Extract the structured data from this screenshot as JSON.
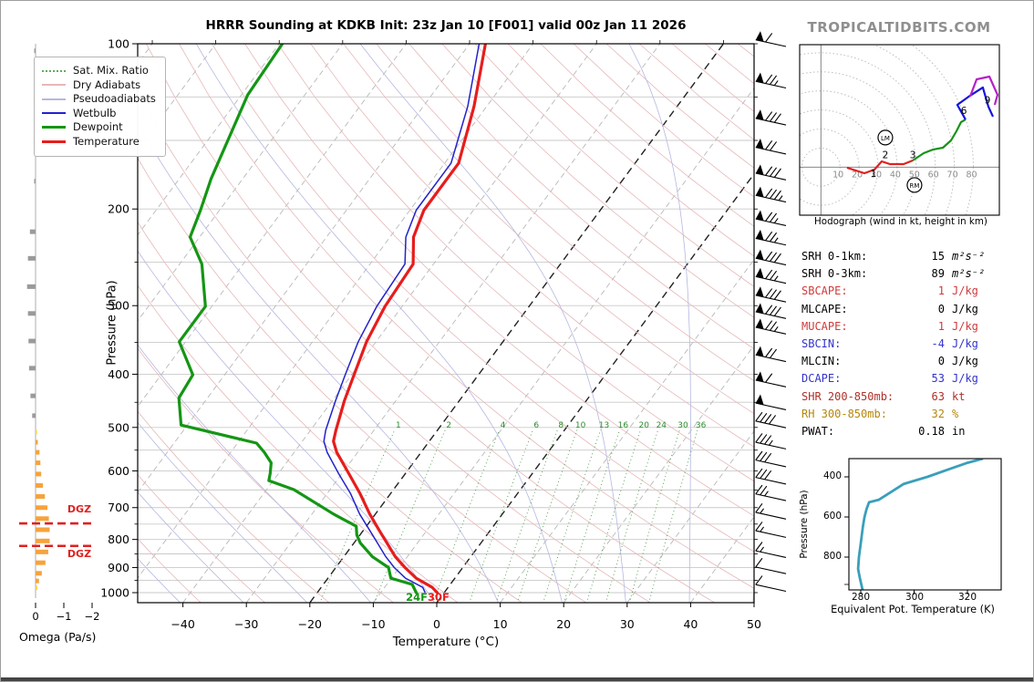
{
  "title": "HRRR Sounding at KDKB Init: 23z Jan 10 [F001] valid 00z Jan 11 2026",
  "watermark": "TROPICALTIDBITS.COM",
  "legend": {
    "items": [
      {
        "label": "Sat. Mix. Ratio"
      },
      {
        "label": "Dry Adiabats"
      },
      {
        "label": "Pseudoadiabats"
      },
      {
        "label": "Wetbulb"
      },
      {
        "label": "Dewpoint"
      },
      {
        "label": "Temperature"
      }
    ]
  },
  "colors": {
    "temperature": "#e81c1c",
    "dewpoint": "#149614",
    "wetbulb": "#2222cc",
    "dry_adiabat": "#e6b8b8",
    "pseudoadiabat": "#b4b8e0",
    "mixing_ratio": "#2e8b2e",
    "isotherm": "#b8b8b8",
    "special_isotherm": "#222222",
    "gridline": "#c9c9c9",
    "omega_down": "#9a9a9a",
    "omega_up": "#f6a33c",
    "omega_up_weak": "#ffd24d",
    "dgz": "#e02020",
    "hodo_0_3km": "#e02020",
    "hodo_3_6km": "#189318",
    "hodo_6_9km": "#1515dd",
    "hodo_9km_plus": "#b520c8",
    "theta_e_line": "#3a9fba"
  },
  "chart_data": {
    "type": "skewt-sounding",
    "skewt": {
      "type": "line",
      "xlabel": "Temperature (°C)",
      "ylabel": "Pressure (hPa)",
      "x_ticks": [
        -40,
        -30,
        -20,
        -10,
        0,
        10,
        20,
        30,
        40,
        50
      ],
      "x_tick_labels": [
        "−40",
        "−30",
        "−20",
        "−10",
        "0",
        "10",
        "20",
        "30",
        "40",
        "50"
      ],
      "p_ticks": [
        100,
        200,
        300,
        400,
        500,
        600,
        700,
        800,
        900,
        1000
      ],
      "p_tick_labels": [
        "100",
        "200",
        "300",
        "400",
        "500",
        "600",
        "700",
        "800",
        "900",
        "1000"
      ],
      "isotherms_every_c": 10,
      "highlighted_isotherms": [
        0,
        -20
      ],
      "mixing_ratio_labels": [
        1,
        2,
        4,
        6,
        8,
        10,
        13,
        16,
        20,
        24,
        30,
        36
      ],
      "surface_dewpoint_label": "24F",
      "surface_temperature_label": "30F",
      "temperature": [
        [
          100,
          -57.5
        ],
        [
          130,
          -52
        ],
        [
          165,
          -47.8
        ],
        [
          201,
          -47.8
        ],
        [
          225,
          -46.3
        ],
        [
          252,
          -43.2
        ],
        [
          301,
          -42.7
        ],
        [
          349,
          -41.5
        ],
        [
          401,
          -39.6
        ],
        [
          447,
          -38.1
        ],
        [
          506,
          -36.0
        ],
        [
          530,
          -35.1
        ],
        [
          555,
          -33.3
        ],
        [
          607,
          -28.9
        ],
        [
          660,
          -24.8
        ],
        [
          719,
          -20.9
        ],
        [
          770,
          -17.5
        ],
        [
          812,
          -14.8
        ],
        [
          860,
          -11.9
        ],
        [
          900,
          -9.1
        ],
        [
          941,
          -6.1
        ],
        [
          978,
          -2.5
        ],
        [
          1000,
          -1.1
        ]
      ],
      "wetbulb": [
        [
          100,
          -58.5
        ],
        [
          130,
          -53
        ],
        [
          165,
          -49
        ],
        [
          201,
          -49
        ],
        [
          225,
          -47.5
        ],
        [
          252,
          -44.5
        ],
        [
          301,
          -44
        ],
        [
          349,
          -42.8
        ],
        [
          401,
          -41
        ],
        [
          447,
          -39.5
        ],
        [
          506,
          -37.6
        ],
        [
          530,
          -36.6
        ],
        [
          555,
          -34.8
        ],
        [
          607,
          -30.5
        ],
        [
          660,
          -26.3
        ],
        [
          719,
          -22.5
        ],
        [
          770,
          -19
        ],
        [
          812,
          -16.3
        ],
        [
          860,
          -13.4
        ],
        [
          900,
          -10.8
        ],
        [
          941,
          -7.8
        ],
        [
          978,
          -4
        ],
        [
          1000,
          -3
        ]
      ],
      "dewpoint": [
        [
          100,
          -89.5
        ],
        [
          124,
          -89
        ],
        [
          176,
          -85
        ],
        [
          201,
          -83
        ],
        [
          225,
          -81.5
        ],
        [
          252,
          -76.5
        ],
        [
          301,
          -71
        ],
        [
          349,
          -71
        ],
        [
          401,
          -65
        ],
        [
          442,
          -64.5
        ],
        [
          495,
          -61
        ],
        [
          534,
          -47
        ],
        [
          555,
          -44.7
        ],
        [
          580,
          -42.4
        ],
        [
          607,
          -41.3
        ],
        [
          625,
          -40.7
        ],
        [
          649,
          -35.7
        ],
        [
          719,
          -26.6
        ],
        [
          757,
          -21.6
        ],
        [
          785,
          -20.5
        ],
        [
          812,
          -19
        ],
        [
          860,
          -15.5
        ],
        [
          900,
          -11.7
        ],
        [
          941,
          -10.1
        ],
        [
          966,
          -6
        ],
        [
          1000,
          -4.4
        ]
      ]
    },
    "omega": {
      "type": "bar",
      "xlabel": "Omega (Pa/s)",
      "ticks": [
        0,
        -1,
        -2
      ],
      "tick_labels": [
        "0",
        "−1",
        "−2"
      ],
      "dgz_label": "DGZ",
      "dgz_pressures": [
        748,
        822
      ],
      "bars": [
        [
          103,
          0.03
        ],
        [
          126,
          0.04
        ],
        [
          150,
          0.04
        ],
        [
          178,
          0.05
        ],
        [
          220,
          0.2
        ],
        [
          246,
          0.27
        ],
        [
          277,
          0.3
        ],
        [
          310,
          0.27
        ],
        [
          348,
          0.25
        ],
        [
          390,
          0.23
        ],
        [
          438,
          0.18
        ],
        [
          476,
          0.12
        ],
        [
          510,
          -0.05
        ],
        [
          532,
          -0.08
        ],
        [
          555,
          -0.14
        ],
        [
          580,
          -0.17
        ],
        [
          608,
          -0.2
        ],
        [
          638,
          -0.26
        ],
        [
          668,
          -0.33
        ],
        [
          700,
          -0.42
        ],
        [
          733,
          -0.47
        ],
        [
          768,
          -0.5
        ],
        [
          805,
          -0.5
        ],
        [
          843,
          -0.45
        ],
        [
          882,
          -0.35
        ],
        [
          922,
          -0.22
        ],
        [
          952,
          -0.12
        ],
        [
          980,
          -0.06
        ]
      ]
    },
    "wind_barbs_kt": [
      [
        100,
        60
      ],
      [
        119,
        75
      ],
      [
        139,
        80
      ],
      [
        157,
        70
      ],
      [
        175,
        80
      ],
      [
        192,
        85
      ],
      [
        212,
        75
      ],
      [
        230,
        75
      ],
      [
        250,
        80
      ],
      [
        270,
        75
      ],
      [
        292,
        80
      ],
      [
        313,
        80
      ],
      [
        334,
        75
      ],
      [
        375,
        70
      ],
      [
        417,
        60
      ],
      [
        459,
        50
      ],
      [
        495,
        40
      ],
      [
        541,
        35
      ],
      [
        583,
        30
      ],
      [
        627,
        30
      ],
      [
        672,
        25
      ],
      [
        726,
        15
      ],
      [
        784,
        15
      ],
      [
        853,
        15
      ],
      [
        913,
        10
      ],
      [
        983,
        10
      ]
    ],
    "hodograph": {
      "type": "line",
      "caption": "Hodograph (wind in kt, height in km)",
      "ring_step_kt": 10,
      "rings": [
        10,
        20,
        30,
        40,
        50,
        60,
        70,
        80
      ],
      "ring_labels": [
        "10",
        "20",
        "30",
        "40",
        "50",
        "60",
        "70",
        "80"
      ],
      "trace": {
        "red_0_3km": [
          [
            13.7,
            -0.3
          ],
          [
            22.8,
            -3.2
          ],
          [
            28.1,
            -1.3
          ],
          [
            31.9,
            3
          ],
          [
            36.2,
            1.6
          ],
          [
            43.4,
            1.6
          ],
          [
            48.2,
            3.5
          ]
        ],
        "green_3_6km": [
          [
            48.2,
            3.5
          ],
          [
            53.9,
            7.3
          ],
          [
            58.7,
            9.2
          ],
          [
            64,
            10.2
          ],
          [
            68.3,
            14
          ],
          [
            71.1,
            18.8
          ],
          [
            73.5,
            23.6
          ],
          [
            75.9,
            25
          ]
        ],
        "blue_6_9km": [
          [
            75.9,
            25
          ],
          [
            71.6,
            32.7
          ],
          [
            78.3,
            37.5
          ],
          [
            85,
            41.8
          ],
          [
            87.9,
            31.7
          ],
          [
            90.3,
            26.5
          ]
        ],
        "purple_9km_plus": [
          [
            78.3,
            37
          ],
          [
            81.7,
            46.1
          ],
          [
            88.4,
            47.5
          ],
          [
            92.7,
            37.9
          ],
          [
            91.2,
            32.7
          ]
        ]
      },
      "height_labels": [
        {
          "text": "1",
          "u": 27.6,
          "v": -3.5
        },
        {
          "text": "2",
          "u": 33.8,
          "v": 6.3
        },
        {
          "text": "3",
          "u": 48.2,
          "v": 6.3
        },
        {
          "text": "6",
          "u": 75.0,
          "v": 29.5
        },
        {
          "text": "9",
          "u": 87.4,
          "v": 35.0
        }
      ],
      "markers": [
        {
          "text": "LM",
          "u": 33.8,
          "v": 15.5
        },
        {
          "text": "RM",
          "u": 49.1,
          "v": -9.4
        }
      ]
    },
    "stats": {
      "type": "table",
      "rows": [
        {
          "label": "SRH 0-1km:",
          "value": "15",
          "unit": "m²s⁻²",
          "color": "#000000"
        },
        {
          "label": "SRH 0-3km:",
          "value": "89",
          "unit": "m²s⁻²",
          "color": "#000000"
        },
        {
          "label": "SBCAPE:",
          "value": "1",
          "unit": "J/kg",
          "color": "#d03a3a"
        },
        {
          "label": "MLCAPE:",
          "value": "0",
          "unit": "J/kg",
          "color": "#000000"
        },
        {
          "label": "MUCAPE:",
          "value": "1",
          "unit": "J/kg",
          "color": "#d03a3a"
        },
        {
          "label": "SBCIN:",
          "value": "-4",
          "unit": "J/kg",
          "color": "#3333cc"
        },
        {
          "label": "MLCIN:",
          "value": "0",
          "unit": "J/kg",
          "color": "#000000"
        },
        {
          "label": "DCAPE:",
          "value": "53",
          "unit": "J/kg",
          "color": "#3333cc"
        },
        {
          "label": "SHR 200-850mb:",
          "value": "63",
          "unit": "kt",
          "color": "#b0302a"
        },
        {
          "label": "RH 300-850mb:",
          "value": "32",
          "unit": "%",
          "color": "#b8860b"
        },
        {
          "label": "PWAT:",
          "value": "0.18",
          "unit": "in",
          "color": "#000000"
        }
      ]
    },
    "theta_e": {
      "type": "line",
      "xlabel": "Equivalent Pot. Temperature (K)",
      "ylabel": "Pressure (hPa)",
      "x_ticks": [
        280,
        300,
        320
      ],
      "x_tick_labels": [
        "280",
        "300",
        "320"
      ],
      "p_ticks": [
        400,
        600,
        800
      ],
      "p_tick_labels": [
        "400",
        "600",
        "800"
      ],
      "points": [
        [
          964,
          280.7
        ],
        [
          900,
          279.6
        ],
        [
          859,
          279
        ],
        [
          800,
          279.3
        ],
        [
          732,
          280
        ],
        [
          650,
          280.8
        ],
        [
          600,
          281.4
        ],
        [
          560,
          282.2
        ],
        [
          527,
          283.1
        ],
        [
          514,
          286.8
        ],
        [
          470,
          292
        ],
        [
          436,
          296
        ],
        [
          400,
          305
        ],
        [
          355,
          314.6
        ],
        [
          330,
          320
        ],
        [
          309,
          325.8
        ]
      ]
    }
  }
}
